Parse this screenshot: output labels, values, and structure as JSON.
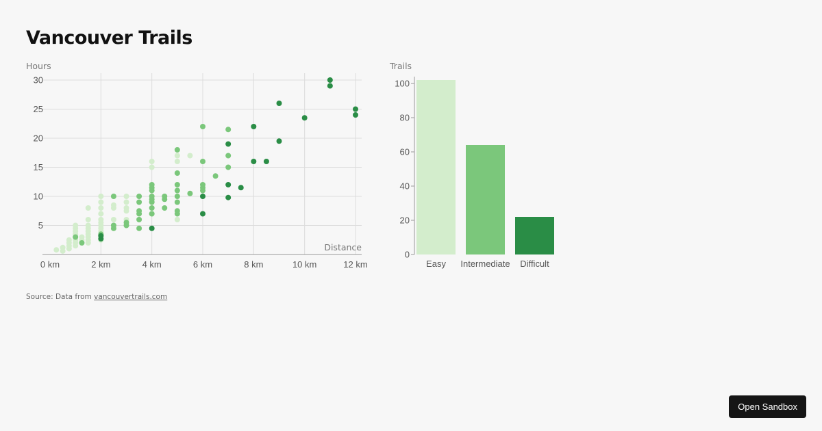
{
  "title": "Vancouver Trails",
  "source": {
    "prefix": "Source: Data from ",
    "link_text": "vancouvertrails.com"
  },
  "button": {
    "label": "Open Sandbox"
  },
  "colors": {
    "easy": "#d3edcc",
    "intermediate": "#7bc77b",
    "difficult": "#2a8d46",
    "grid": "#dcdcdc",
    "axis": "#999999"
  },
  "chart_data": [
    {
      "type": "scatter",
      "xlabel": "Distance",
      "ylabel": "Hours",
      "xlim": [
        0,
        12
      ],
      "ylim": [
        0,
        30
      ],
      "xticks": [
        {
          "v": 0,
          "t": "0 km"
        },
        {
          "v": 2,
          "t": "2 km"
        },
        {
          "v": 4,
          "t": "4 km"
        },
        {
          "v": 6,
          "t": "6 km"
        },
        {
          "v": 8,
          "t": "8 km"
        },
        {
          "v": 10,
          "t": "10 km"
        },
        {
          "v": 12,
          "t": "12 km"
        }
      ],
      "yticks": [
        {
          "v": 5,
          "t": "5"
        },
        {
          "v": 10,
          "t": "10"
        },
        {
          "v": 15,
          "t": "15"
        },
        {
          "v": 20,
          "t": "20"
        },
        {
          "v": 25,
          "t": "25"
        },
        {
          "v": 30,
          "t": "30"
        }
      ],
      "grid": true,
      "series": [
        {
          "color": "#d3edcc",
          "points": [
            [
              0.25,
              0.8
            ],
            [
              0.5,
              0.6
            ],
            [
              0.5,
              1.2
            ],
            [
              0.75,
              1.0
            ],
            [
              0.75,
              1.5
            ],
            [
              0.75,
              2.0
            ],
            [
              0.75,
              2.5
            ],
            [
              1,
              1.5
            ],
            [
              1,
              2.0
            ],
            [
              1,
              2.5
            ],
            [
              1,
              3.0
            ],
            [
              1,
              3.5
            ],
            [
              1,
              4.0
            ],
            [
              1,
              4.5
            ],
            [
              1,
              5.0
            ],
            [
              1.25,
              2.5
            ],
            [
              1.25,
              3.0
            ],
            [
              1.5,
              2.0
            ],
            [
              1.5,
              2.5
            ],
            [
              1.5,
              3.0
            ],
            [
              1.5,
              3.5
            ],
            [
              1.5,
              4.0
            ],
            [
              1.5,
              4.5
            ],
            [
              1.5,
              5.0
            ],
            [
              1.5,
              6.0
            ],
            [
              1.5,
              8.0
            ],
            [
              2,
              2.5
            ],
            [
              2,
              3.0
            ],
            [
              2,
              3.5
            ],
            [
              2,
              4.0
            ],
            [
              2,
              4.5
            ],
            [
              2,
              5.0
            ],
            [
              2,
              5.5
            ],
            [
              2,
              6.0
            ],
            [
              2,
              7.0
            ],
            [
              2,
              8.0
            ],
            [
              2,
              9.0
            ],
            [
              2,
              10.0
            ],
            [
              2.5,
              5.0
            ],
            [
              2.5,
              6.0
            ],
            [
              2.5,
              8.0
            ],
            [
              2.5,
              8.5
            ],
            [
              3,
              5.0
            ],
            [
              3,
              6.0
            ],
            [
              3,
              7.5
            ],
            [
              3,
              8.0
            ],
            [
              3,
              9.0
            ],
            [
              3,
              10.0
            ],
            [
              3.5,
              6.0
            ],
            [
              4,
              7.0
            ],
            [
              4,
              8.0
            ],
            [
              4,
              9.0
            ],
            [
              4,
              10.0
            ],
            [
              4,
              15.0
            ],
            [
              4,
              16.0
            ],
            [
              5,
              6.0
            ],
            [
              5,
              16.0
            ],
            [
              5,
              17.0
            ],
            [
              5.5,
              17.0
            ]
          ]
        },
        {
          "color": "#7bc77b",
          "points": [
            [
              1,
              3.0
            ],
            [
              1.25,
              2.0
            ],
            [
              2,
              3.5
            ],
            [
              2.5,
              4.5
            ],
            [
              2.5,
              5.0
            ],
            [
              2.5,
              10.0
            ],
            [
              3,
              5.0
            ],
            [
              3,
              5.5
            ],
            [
              3.5,
              4.5
            ],
            [
              3.5,
              6.0
            ],
            [
              3.5,
              7.0
            ],
            [
              3.5,
              7.5
            ],
            [
              3.5,
              9.0
            ],
            [
              3.5,
              10.0
            ],
            [
              4,
              7.0
            ],
            [
              4,
              8.0
            ],
            [
              4,
              9.0
            ],
            [
              4,
              9.5
            ],
            [
              4,
              10.0
            ],
            [
              4,
              11.0
            ],
            [
              4,
              11.5
            ],
            [
              4,
              12.0
            ],
            [
              4.5,
              8.0
            ],
            [
              4.5,
              9.5
            ],
            [
              4.5,
              10.0
            ],
            [
              5,
              7.0
            ],
            [
              5,
              7.5
            ],
            [
              5,
              9.0
            ],
            [
              5,
              10.0
            ],
            [
              5,
              11.0
            ],
            [
              5,
              12.0
            ],
            [
              5,
              14.0
            ],
            [
              5,
              18.0
            ],
            [
              5.5,
              10.5
            ],
            [
              6,
              11.0
            ],
            [
              6,
              11.5
            ],
            [
              6,
              12.0
            ],
            [
              6,
              16.0
            ],
            [
              6,
              22.0
            ],
            [
              6.5,
              13.5
            ],
            [
              7,
              15.0
            ],
            [
              7,
              17.0
            ],
            [
              7,
              21.5
            ]
          ]
        },
        {
          "color": "#2a8d46",
          "points": [
            [
              2,
              2.7
            ],
            [
              2,
              3.2
            ],
            [
              4,
              4.5
            ],
            [
              6,
              7.0
            ],
            [
              6,
              10.0
            ],
            [
              7,
              9.8
            ],
            [
              7,
              12.0
            ],
            [
              7,
              19.0
            ],
            [
              7.5,
              11.5
            ],
            [
              8,
              16.0
            ],
            [
              8,
              22.0
            ],
            [
              8.5,
              16.0
            ],
            [
              9,
              19.5
            ],
            [
              9,
              26.0
            ],
            [
              10,
              23.5
            ],
            [
              11,
              29.0
            ],
            [
              11,
              30.0
            ],
            [
              12,
              24.0
            ],
            [
              12,
              25.0
            ]
          ]
        }
      ]
    },
    {
      "type": "bar",
      "ylabel": "Trails",
      "ylim": [
        0,
        100
      ],
      "yticks": [
        0,
        20,
        40,
        60,
        80,
        100
      ],
      "categories": [
        "Easy",
        "Intermediate",
        "Difficult"
      ],
      "values": [
        102,
        64,
        22
      ],
      "colors": [
        "#d3edcc",
        "#7bc77b",
        "#2a8d46"
      ]
    }
  ]
}
